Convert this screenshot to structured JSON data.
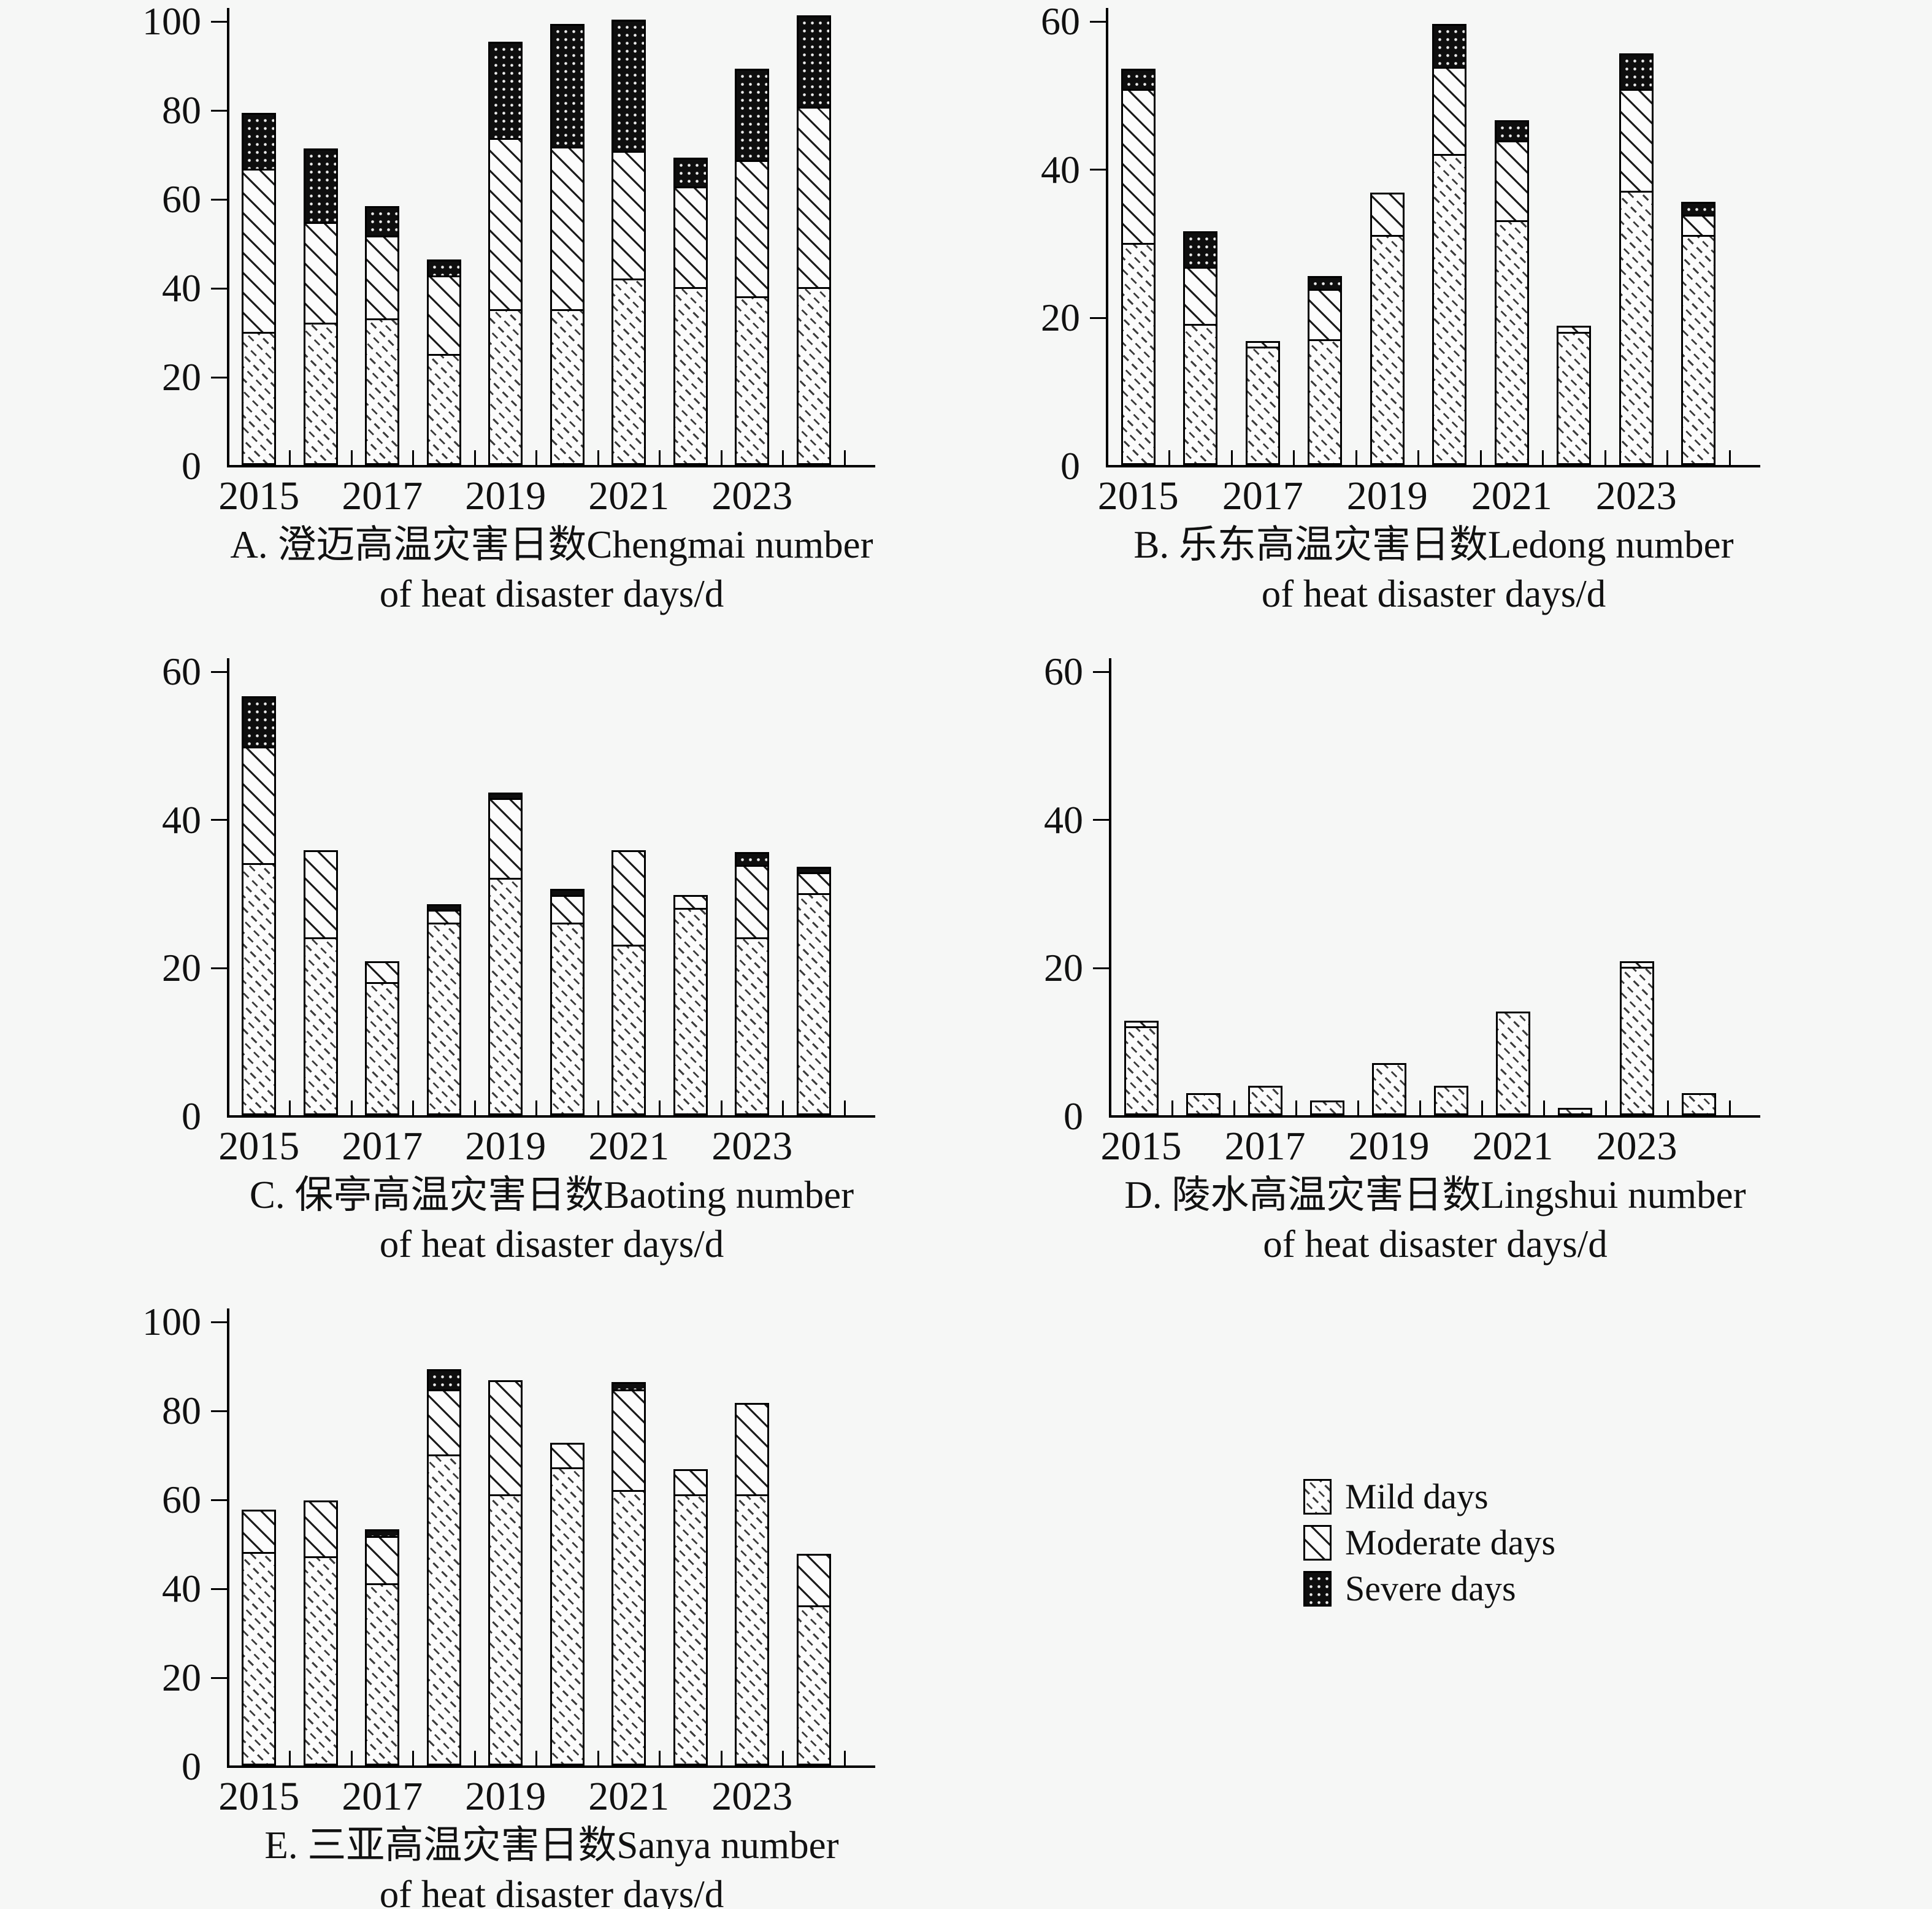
{
  "page": {
    "background_color": "#f6f7f6",
    "text_color": "#111111",
    "axis_color": "#000000"
  },
  "legend": {
    "position": "bottom-right",
    "items": [
      {
        "label": "Mild days",
        "pattern": "mild-diagonal-dashes"
      },
      {
        "label": "Moderate days",
        "pattern": "moderate-diagonal-lines"
      },
      {
        "label": "Severe days",
        "pattern": "severe-black-dots"
      }
    ]
  },
  "chart_data": [
    {
      "id": "A",
      "type": "bar",
      "stacked": true,
      "title": "A. 澄迈高温灾害日数Chengmai number",
      "subtitle": "of heat disaster days/d",
      "ylim": [
        0,
        100
      ],
      "yticks": [
        0,
        20,
        40,
        60,
        80,
        100
      ],
      "categories": [
        2015,
        2016,
        2017,
        2018,
        2019,
        2020,
        2021,
        2022,
        2023,
        2024
      ],
      "xtick_labels": [
        "2015",
        "2017",
        "2019",
        "2021",
        "2023"
      ],
      "grid": false,
      "series": [
        {
          "name": "Mild days",
          "values": [
            30,
            32,
            33,
            25,
            35,
            35,
            42,
            40,
            38,
            40
          ]
        },
        {
          "name": "Moderate days",
          "values": [
            37,
            23,
            19,
            18,
            39,
            37,
            29,
            23,
            31,
            41
          ]
        },
        {
          "name": "Severe days",
          "values": [
            13,
            17,
            7,
            4,
            22,
            28,
            30,
            7,
            21,
            21
          ]
        }
      ],
      "totals": [
        80,
        72,
        59,
        47,
        96,
        100,
        101,
        70,
        90,
        102
      ]
    },
    {
      "id": "B",
      "type": "bar",
      "stacked": true,
      "title": "B. 乐东高温灾害日数Ledong number",
      "subtitle": "of heat disaster days/d",
      "ylim": [
        0,
        60
      ],
      "yticks": [
        0,
        20,
        40,
        60
      ],
      "categories": [
        2015,
        2016,
        2017,
        2018,
        2019,
        2020,
        2021,
        2022,
        2023,
        2024
      ],
      "xtick_labels": [
        "2015",
        "2017",
        "2019",
        "2021",
        "2023"
      ],
      "grid": false,
      "series": [
        {
          "name": "Mild days",
          "values": [
            30,
            19,
            16,
            17,
            31,
            42,
            33,
            18,
            37,
            31
          ]
        },
        {
          "name": "Moderate days",
          "values": [
            21,
            8,
            1,
            7,
            6,
            12,
            11,
            1,
            14,
            3
          ]
        },
        {
          "name": "Severe days",
          "values": [
            3,
            5,
            0,
            2,
            0,
            6,
            3,
            0,
            5,
            2
          ]
        }
      ],
      "totals": [
        54,
        32,
        17,
        26,
        37,
        60,
        47,
        19,
        56,
        36
      ]
    },
    {
      "id": "C",
      "type": "bar",
      "stacked": true,
      "title": "C. 保亭高温灾害日数Baoting number",
      "subtitle": "of heat disaster days/d",
      "ylim": [
        0,
        60
      ],
      "yticks": [
        0,
        20,
        40,
        60
      ],
      "categories": [
        2015,
        2016,
        2017,
        2018,
        2019,
        2020,
        2021,
        2022,
        2023,
        2024
      ],
      "xtick_labels": [
        "2015",
        "2017",
        "2019",
        "2021",
        "2023"
      ],
      "grid": false,
      "series": [
        {
          "name": "Mild days",
          "values": [
            34,
            24,
            18,
            26,
            32,
            26,
            23,
            28,
            24,
            30
          ]
        },
        {
          "name": "Moderate days",
          "values": [
            16,
            12,
            3,
            2,
            11,
            4,
            13,
            2,
            10,
            3
          ]
        },
        {
          "name": "Severe days",
          "values": [
            7,
            0,
            0,
            1,
            1,
            1,
            0,
            0,
            2,
            1
          ]
        }
      ],
      "totals": [
        57,
        36,
        21,
        29,
        44,
        31,
        36,
        30,
        36,
        34
      ]
    },
    {
      "id": "D",
      "type": "bar",
      "stacked": true,
      "title": "D. 陵水高温灾害日数Lingshui number",
      "subtitle": "of heat disaster days/d",
      "ylim": [
        0,
        60
      ],
      "yticks": [
        0,
        20,
        40,
        60
      ],
      "categories": [
        2015,
        2016,
        2017,
        2018,
        2019,
        2020,
        2021,
        2022,
        2023,
        2024
      ],
      "xtick_labels": [
        "2015",
        "2017",
        "2019",
        "2021",
        "2023"
      ],
      "grid": false,
      "series": [
        {
          "name": "Mild days",
          "values": [
            12,
            3,
            4,
            2,
            7,
            4,
            14,
            1,
            20,
            3
          ]
        },
        {
          "name": "Moderate days",
          "values": [
            1,
            0,
            0,
            0,
            0,
            0,
            0,
            0,
            1,
            0
          ]
        },
        {
          "name": "Severe days",
          "values": [
            0,
            0,
            0,
            0,
            0,
            0,
            0,
            0,
            0,
            0
          ]
        }
      ],
      "totals": [
        13,
        3,
        4,
        2,
        7,
        4,
        14,
        1,
        21,
        3
      ]
    },
    {
      "id": "E",
      "type": "bar",
      "stacked": true,
      "title": "E. 三亚高温灾害日数Sanya number",
      "subtitle": "of heat disaster days/d",
      "ylim": [
        0,
        100
      ],
      "yticks": [
        0,
        20,
        40,
        60,
        80,
        100
      ],
      "categories": [
        2015,
        2016,
        2017,
        2018,
        2019,
        2020,
        2021,
        2022,
        2023,
        2024
      ],
      "xtick_labels": [
        "2015",
        "2017",
        "2019",
        "2021",
        "2023"
      ],
      "grid": false,
      "series": [
        {
          "name": "Mild days",
          "values": [
            48,
            47,
            41,
            70,
            61,
            67,
            62,
            61,
            61,
            36
          ]
        },
        {
          "name": "Moderate days",
          "values": [
            10,
            13,
            11,
            15,
            26,
            6,
            23,
            6,
            21,
            12
          ]
        },
        {
          "name": "Severe days",
          "values": [
            0,
            0,
            2,
            5,
            0,
            0,
            2,
            0,
            0,
            0
          ]
        }
      ],
      "totals": [
        58,
        60,
        54,
        90,
        87,
        73,
        87,
        67,
        82,
        48
      ]
    }
  ]
}
